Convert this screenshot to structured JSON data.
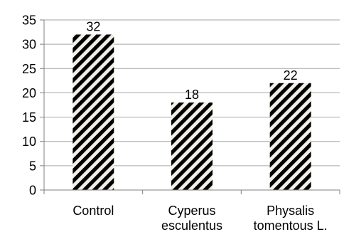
{
  "chart_data": {
    "type": "bar",
    "title": "",
    "xlabel": "",
    "ylabel": "",
    "categories": [
      [
        "Control"
      ],
      [
        "Cyperus",
        "esculentus"
      ],
      [
        "Physalis",
        "tomentous L."
      ]
    ],
    "values": [
      32,
      18,
      22
    ],
    "data_labels": [
      "32",
      "18",
      "22"
    ],
    "ylim": [
      0,
      35
    ],
    "yticks": [
      0,
      5,
      10,
      15,
      20,
      25,
      30,
      35
    ],
    "grid": true,
    "legend": "none",
    "colors": {
      "bar_stripe_dark": "#000000",
      "bar_stripe_light": "#f2efe6",
      "grid": "#a6a6a6",
      "axis": "#808080"
    },
    "bar_fill": "diagonal-stripes"
  }
}
